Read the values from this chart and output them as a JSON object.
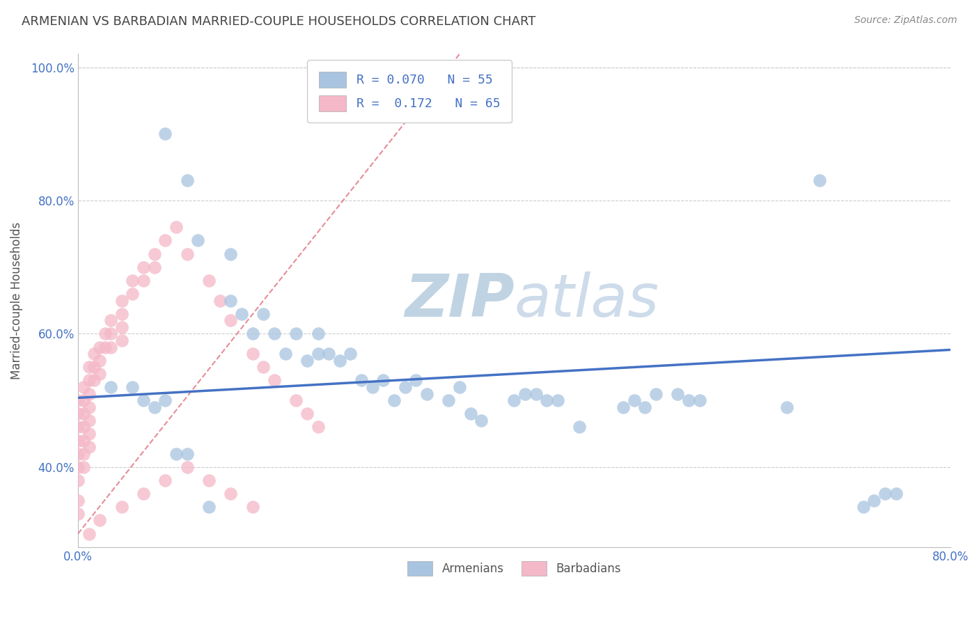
{
  "title": "ARMENIAN VS BARBADIAN MARRIED-COUPLE HOUSEHOLDS CORRELATION CHART",
  "source": "Source: ZipAtlas.com",
  "ylabel": "Married-couple Households",
  "xlim": [
    0.0,
    0.8
  ],
  "ylim": [
    0.28,
    1.02
  ],
  "yticks": [
    0.4,
    0.6,
    0.8,
    1.0
  ],
  "yticklabels": [
    "40.0%",
    "60.0%",
    "80.0%",
    "100.0%"
  ],
  "xticks": [
    0.0,
    0.1,
    0.2,
    0.3,
    0.4,
    0.5,
    0.6,
    0.7,
    0.8
  ],
  "xticklabels": [
    "0.0%",
    "",
    "",
    "",
    "",
    "",
    "",
    "",
    "80.0%"
  ],
  "legend_r1": "R = 0.070",
  "legend_n1": "N = 55",
  "legend_r2": "R =  0.172",
  "legend_n2": "N = 65",
  "armenian_color": "#a8c4e0",
  "barbadian_color": "#f4b8c8",
  "trend_armenian_color": "#4472c4",
  "trend_barbadian_color": "#e07080",
  "watermark_zip": "ZIP",
  "watermark_atlas": "atlas",
  "watermark_color": "#ccd9e8",
  "background_color": "#ffffff",
  "grid_color": "#cccccc",
  "arm_trend_x0": 0.0,
  "arm_trend_y0": 0.504,
  "arm_trend_x1": 0.8,
  "arm_trend_y1": 0.576,
  "barb_trend_x0": 0.0,
  "barb_trend_y0": 0.3,
  "barb_trend_x1": 0.35,
  "barb_trend_y1": 1.02,
  "armenian_scatter_x": [
    0.08,
    0.1,
    0.11,
    0.14,
    0.14,
    0.15,
    0.16,
    0.17,
    0.18,
    0.19,
    0.2,
    0.21,
    0.22,
    0.22,
    0.23,
    0.24,
    0.25,
    0.26,
    0.27,
    0.28,
    0.29,
    0.3,
    0.31,
    0.32,
    0.34,
    0.35,
    0.36,
    0.37,
    0.4,
    0.41,
    0.42,
    0.43,
    0.44,
    0.46,
    0.5,
    0.51,
    0.52,
    0.53,
    0.55,
    0.56,
    0.57,
    0.65,
    0.68,
    0.72,
    0.73,
    0.74,
    0.75,
    0.03,
    0.05,
    0.06,
    0.07,
    0.08,
    0.09,
    0.1,
    0.12
  ],
  "armenian_scatter_y": [
    0.9,
    0.83,
    0.74,
    0.72,
    0.65,
    0.63,
    0.6,
    0.63,
    0.6,
    0.57,
    0.6,
    0.56,
    0.6,
    0.57,
    0.57,
    0.56,
    0.57,
    0.53,
    0.52,
    0.53,
    0.5,
    0.52,
    0.53,
    0.51,
    0.5,
    0.52,
    0.48,
    0.47,
    0.5,
    0.51,
    0.51,
    0.5,
    0.5,
    0.46,
    0.49,
    0.5,
    0.49,
    0.51,
    0.51,
    0.5,
    0.5,
    0.49,
    0.83,
    0.34,
    0.35,
    0.36,
    0.36,
    0.52,
    0.52,
    0.5,
    0.49,
    0.5,
    0.42,
    0.42,
    0.34
  ],
  "barbadian_scatter_x": [
    0.0,
    0.0,
    0.0,
    0.0,
    0.0,
    0.0,
    0.005,
    0.005,
    0.005,
    0.005,
    0.005,
    0.005,
    0.005,
    0.01,
    0.01,
    0.01,
    0.01,
    0.01,
    0.01,
    0.01,
    0.015,
    0.015,
    0.015,
    0.02,
    0.02,
    0.02,
    0.025,
    0.025,
    0.03,
    0.03,
    0.03,
    0.04,
    0.04,
    0.04,
    0.04,
    0.05,
    0.05,
    0.06,
    0.06,
    0.07,
    0.07,
    0.08,
    0.09,
    0.1,
    0.12,
    0.13,
    0.14,
    0.16,
    0.17,
    0.18,
    0.2,
    0.21,
    0.22,
    0.14,
    0.16,
    0.12,
    0.1,
    0.08,
    0.06,
    0.04,
    0.02,
    0.01,
    0.0,
    0.0,
    0.0
  ],
  "barbadian_scatter_y": [
    0.5,
    0.48,
    0.46,
    0.44,
    0.42,
    0.4,
    0.52,
    0.5,
    0.48,
    0.46,
    0.44,
    0.42,
    0.4,
    0.55,
    0.53,
    0.51,
    0.49,
    0.47,
    0.45,
    0.43,
    0.57,
    0.55,
    0.53,
    0.58,
    0.56,
    0.54,
    0.6,
    0.58,
    0.62,
    0.6,
    0.58,
    0.65,
    0.63,
    0.61,
    0.59,
    0.68,
    0.66,
    0.7,
    0.68,
    0.72,
    0.7,
    0.74,
    0.76,
    0.72,
    0.68,
    0.65,
    0.62,
    0.57,
    0.55,
    0.53,
    0.5,
    0.48,
    0.46,
    0.36,
    0.34,
    0.38,
    0.4,
    0.38,
    0.36,
    0.34,
    0.32,
    0.3,
    0.33,
    0.35,
    0.38
  ]
}
